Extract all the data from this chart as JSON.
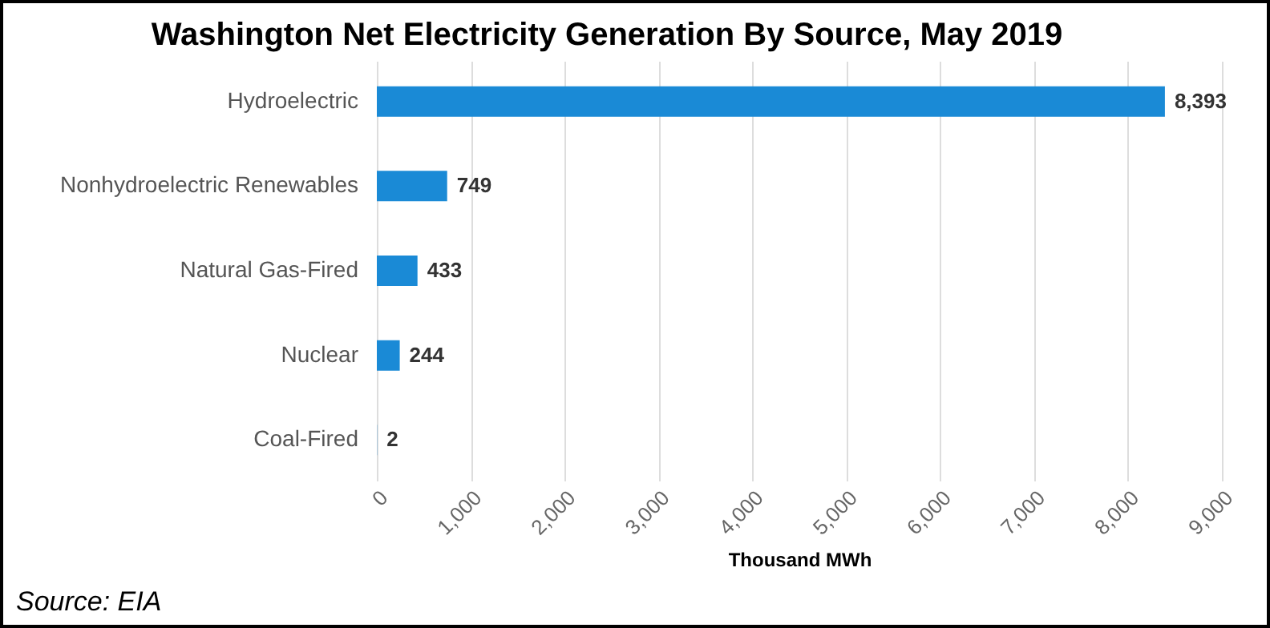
{
  "chart_data": {
    "type": "bar",
    "orientation": "horizontal",
    "title": "Washington Net Electricity Generation By Source, May 2019",
    "xlabel": "Thousand MWh",
    "categories": [
      "Hydroelectric",
      "Nonhydroelectric Renewables",
      "Natural Gas-Fired",
      "Nuclear",
      "Coal-Fired"
    ],
    "values": [
      8393,
      749,
      433,
      244,
      2
    ],
    "value_labels": [
      "8,393",
      "749",
      "433",
      "244",
      "2"
    ],
    "color": "#1a8ad6",
    "xlim": [
      0,
      9000
    ],
    "xticks": [
      {
        "value": 0,
        "label": "0"
      },
      {
        "value": 1000,
        "label": "1,000"
      },
      {
        "value": 2000,
        "label": "2,000"
      },
      {
        "value": 3000,
        "label": "3,000"
      },
      {
        "value": 4000,
        "label": "4,000"
      },
      {
        "value": 5000,
        "label": "5,000"
      },
      {
        "value": 6000,
        "label": "6,000"
      },
      {
        "value": 7000,
        "label": "7,000"
      },
      {
        "value": 8000,
        "label": "8,000"
      },
      {
        "value": 9000,
        "label": "9,000"
      }
    ],
    "grid": "x",
    "annotations": [
      "Source: EIA"
    ]
  }
}
